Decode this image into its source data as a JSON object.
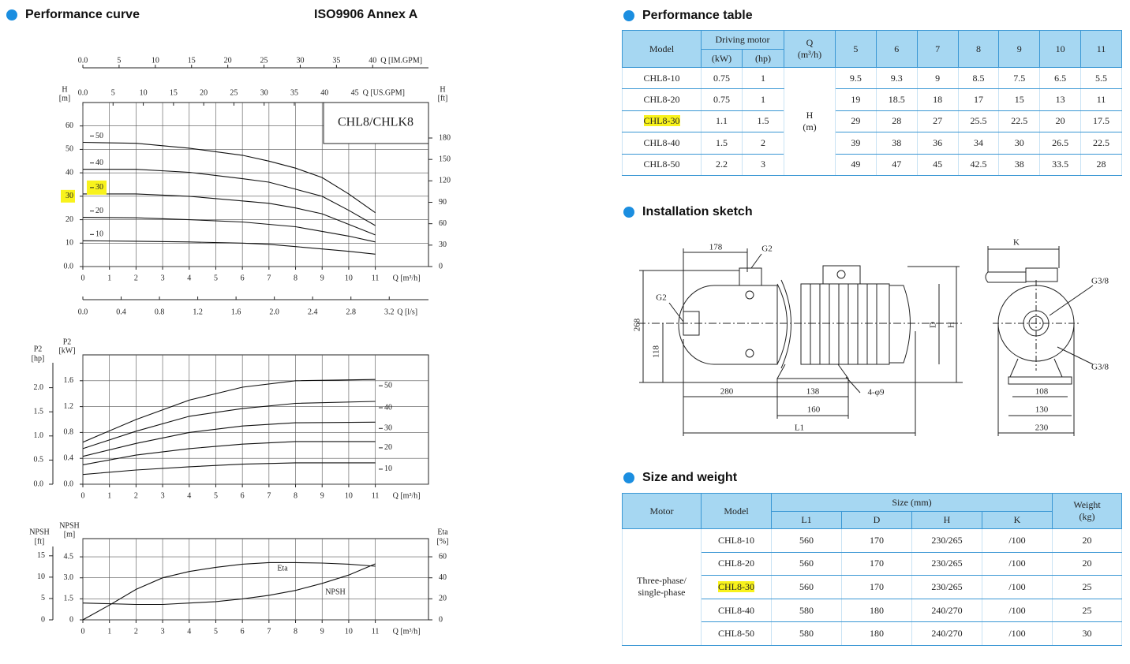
{
  "performance_curve": {
    "title": "Performance curve",
    "standard": "ISO9906 Annex A",
    "head_chart": {
      "model_label": "CHL8/CHLK8",
      "x_label": "Q [m³/h]",
      "y_label": "H",
      "y_unit": "[m]",
      "grid": true,
      "xlim": [
        0,
        13
      ],
      "xticks": [
        0,
        1,
        2,
        3,
        4,
        5,
        6,
        7,
        8,
        9,
        10,
        11
      ],
      "ylim": [
        0,
        70
      ],
      "yticks": [
        {
          "value": 0,
          "label": "0.0"
        },
        10,
        20,
        30,
        40,
        50,
        60
      ],
      "top_axis": {
        "label": "Q [IM.GPM]",
        "lim": [
          0,
          47.7
        ],
        "ticks": [
          {
            "value": 0,
            "label": "0.0"
          },
          5,
          10,
          15,
          20,
          25,
          30,
          35,
          40
        ]
      },
      "second_top_axis": {
        "label": "Q [US.GPM]",
        "lim": [
          0,
          57.2
        ],
        "ticks": [
          {
            "value": 0,
            "label": "0.0"
          },
          5,
          10,
          15,
          20,
          25,
          30,
          35,
          40,
          45
        ]
      },
      "right_axis": {
        "label": "H",
        "unit": "[ft]",
        "lim": [
          0,
          229.7
        ],
        "ticks": [
          0,
          30,
          60,
          90,
          120,
          150,
          180
        ]
      },
      "bottom_axis": {
        "label": "Q [l/s]",
        "lim": [
          0,
          3.61
        ],
        "ticks": [
          {
            "value": 0,
            "label": "0.0"
          },
          0.4,
          0.8,
          1.2,
          1.6,
          {
            "value": 2,
            "label": "2.0"
          },
          2.4,
          2.8,
          3.2
        ]
      },
      "x": [
        0,
        2,
        4,
        6,
        7,
        8,
        9,
        10,
        11
      ],
      "series": [
        {
          "name": "50",
          "values": [
            53,
            52.6,
            50.5,
            47.5,
            45,
            42,
            38,
            31,
            23
          ]
        },
        {
          "name": "40",
          "values": [
            41.5,
            41.5,
            40.2,
            37.5,
            36,
            33,
            30,
            24,
            17.5
          ]
        },
        {
          "name": "30",
          "values": [
            31,
            31,
            30,
            28,
            27,
            25,
            22.5,
            18,
            13.5
          ]
        },
        {
          "name": "20",
          "values": [
            21,
            20.8,
            20,
            19,
            18,
            17,
            15,
            13,
            10.5
          ]
        },
        {
          "name": "10",
          "values": [
            11,
            10.8,
            10.5,
            10,
            9.5,
            8.5,
            7.5,
            6.5,
            5.3
          ]
        }
      ]
    },
    "power_chart": {
      "x_label": "Q [m³/h]",
      "y_label": "P2",
      "y_unit": "[kW]",
      "grid": true,
      "xlim": [
        0,
        13
      ],
      "xticks": [
        0,
        1,
        2,
        3,
        4,
        5,
        6,
        7,
        8,
        9,
        10,
        11
      ],
      "ylim": [
        0,
        2.0
      ],
      "yticks": [
        {
          "value": 0,
          "label": "0.0"
        },
        0.4,
        0.8,
        1.2,
        1.6
      ],
      "left_axis": {
        "label": "P2",
        "unit": "[hp]",
        "lim": [
          0,
          2.68
        ],
        "ticks": [
          {
            "value": 0,
            "label": "0.0"
          },
          0.5,
          {
            "value": 1,
            "label": "1.0"
          },
          1.5,
          {
            "value": 2,
            "label": "2.0"
          }
        ]
      },
      "x": [
        0,
        2,
        4,
        6,
        8,
        11
      ],
      "series": [
        {
          "name": "50",
          "values": [
            0.65,
            1.0,
            1.3,
            1.5,
            1.6,
            1.62
          ]
        },
        {
          "name": "40",
          "values": [
            0.55,
            0.82,
            1.05,
            1.17,
            1.25,
            1.28
          ]
        },
        {
          "name": "30",
          "values": [
            0.43,
            0.63,
            0.8,
            0.9,
            0.95,
            0.96
          ]
        },
        {
          "name": "20",
          "values": [
            0.3,
            0.45,
            0.55,
            0.62,
            0.66,
            0.66
          ]
        },
        {
          "name": "10",
          "values": [
            0.15,
            0.22,
            0.27,
            0.31,
            0.33,
            0.33
          ]
        }
      ]
    },
    "npsh_chart": {
      "x_label": "Q [m³/h]",
      "y_label": "NPSH",
      "y_unit": "[m]",
      "grid": true,
      "xlim": [
        0,
        13
      ],
      "xticks": [
        0,
        1,
        2,
        3,
        4,
        5,
        6,
        7,
        8,
        9,
        10,
        11
      ],
      "ylim": [
        0,
        5.8
      ],
      "yticks": [
        0,
        1.5,
        {
          "value": 3,
          "label": "3.0"
        },
        4.5
      ],
      "left_axis": {
        "label": "NPSH",
        "unit": "[ft]",
        "lim": [
          0,
          19.03
        ],
        "ticks": [
          0,
          5,
          10,
          15
        ]
      },
      "y2_label": "Eta",
      "y2_unit": "[%]",
      "y2lim": [
        0,
        77.3
      ],
      "y2ticks": [
        0,
        20,
        40,
        60
      ],
      "x": [
        0,
        1,
        2,
        3,
        4,
        5,
        6,
        7,
        8,
        9,
        10,
        11
      ],
      "series": [
        {
          "name": "Eta",
          "axis": "y2",
          "values": [
            0,
            14,
            29,
            40,
            46,
            50,
            53,
            54.5,
            54.5,
            54,
            53,
            51
          ]
        },
        {
          "name": "NPSH",
          "values": [
            1.2,
            1.15,
            1.1,
            1.1,
            1.2,
            1.3,
            1.5,
            1.75,
            2.1,
            2.6,
            3.2,
            4.0
          ]
        }
      ]
    }
  },
  "performance_table": {
    "title": "Performance table",
    "header": {
      "model": "Model",
      "driving_motor": "Driving motor",
      "kw": "(kW)",
      "hp": "(hp)",
      "q": "Q",
      "q_unit": "(m³/h)",
      "flows": [
        5,
        6,
        7,
        8,
        9,
        10,
        11
      ]
    },
    "head_label": "H",
    "head_unit": "(m)",
    "rows": [
      {
        "model": "CHL8-10",
        "kw": 0.75,
        "hp": 1,
        "head": [
          9.5,
          9.3,
          9,
          8.5,
          7.5,
          6.5,
          5.5
        ]
      },
      {
        "model": "CHL8-20",
        "kw": 0.75,
        "hp": 1,
        "head": [
          19,
          18.5,
          18,
          17,
          15,
          13,
          11
        ]
      },
      {
        "model": "CHL8-30",
        "kw": 1.1,
        "hp": 1.5,
        "head": [
          29,
          28,
          27,
          25.5,
          22.5,
          20,
          17.5
        ]
      },
      {
        "model": "CHL8-40",
        "kw": 1.5,
        "hp": 2,
        "head": [
          39,
          38,
          36,
          34,
          30,
          26.5,
          22.5
        ]
      },
      {
        "model": "CHL8-50",
        "kw": 2.2,
        "hp": 3,
        "head": [
          49,
          47,
          45,
          42.5,
          38,
          33.5,
          28
        ]
      }
    ]
  },
  "installation_sketch": {
    "title": "Installation sketch",
    "labels": [
      "178",
      "G2",
      "G2",
      "268",
      "118",
      "280",
      "138",
      "160",
      "4-φ9",
      "L1",
      "D",
      "H",
      "K",
      "G3/8",
      "G3/8",
      "108",
      "130",
      "230"
    ]
  },
  "size_weight": {
    "title": "Size and weight",
    "header": {
      "motor": "Motor",
      "model": "Model",
      "size": "Size (mm)",
      "columns": [
        "L1",
        "D",
        "H",
        "K"
      ],
      "weight": "Weight",
      "weight_unit": "(kg)"
    },
    "motor": [
      "Three-phase/",
      "single-phase"
    ],
    "rows": [
      [
        "CHL8-10",
        560,
        170,
        "230/265",
        "/100",
        20
      ],
      [
        "CHL8-20",
        560,
        170,
        "230/265",
        "/100",
        20
      ],
      [
        "CHL8-30",
        560,
        170,
        "230/265",
        "/100",
        25
      ],
      [
        "CHL8-40",
        580,
        180,
        "240/270",
        "/100",
        25
      ],
      [
        "CHL8-50",
        580,
        180,
        "240/270",
        "/100",
        30
      ]
    ]
  }
}
